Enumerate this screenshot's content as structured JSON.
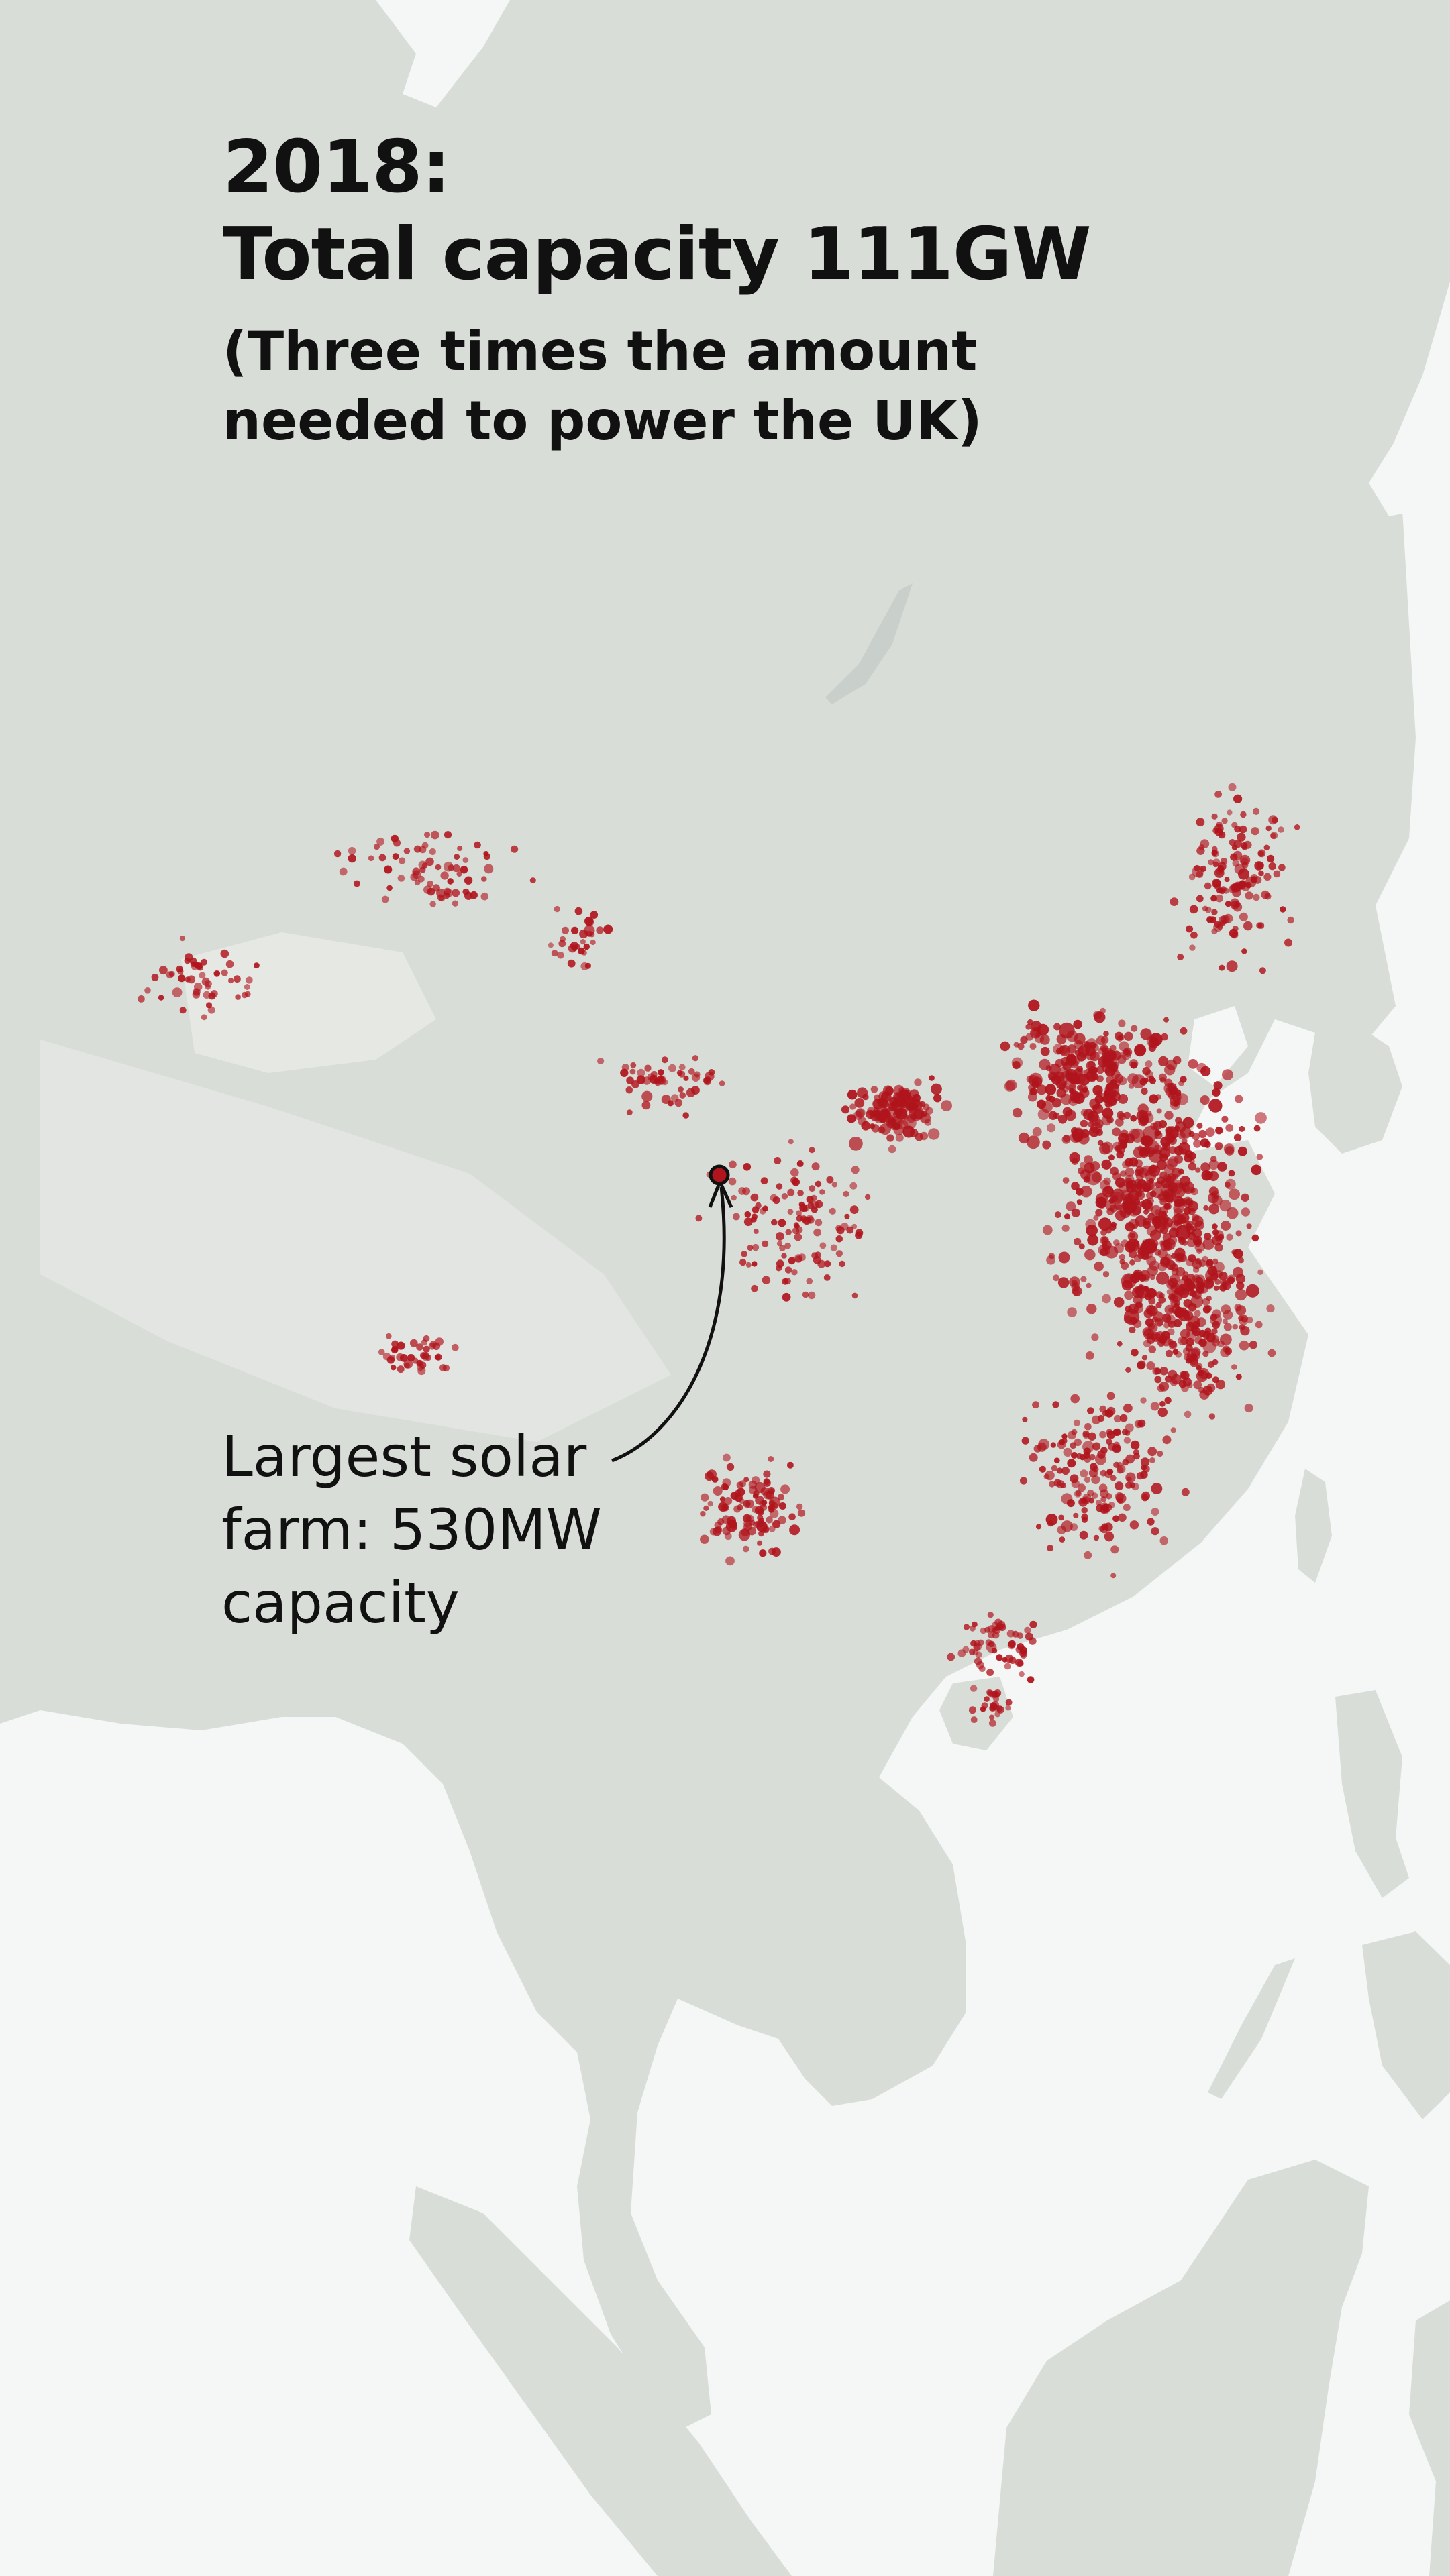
{
  "title": {
    "year": "2018:",
    "headline": "Total capacity 111GW",
    "subtitle": "(Three times the amount needed to power the UK)"
  },
  "annotation": {
    "text": "Largest solar farm: 530MW capacity"
  },
  "colors": {
    "water": "#f5f6f6",
    "land": "#d9ddd8",
    "land_light": "#e3e6e2",
    "solar_point": "#b0141c",
    "text": "#111111"
  }
}
